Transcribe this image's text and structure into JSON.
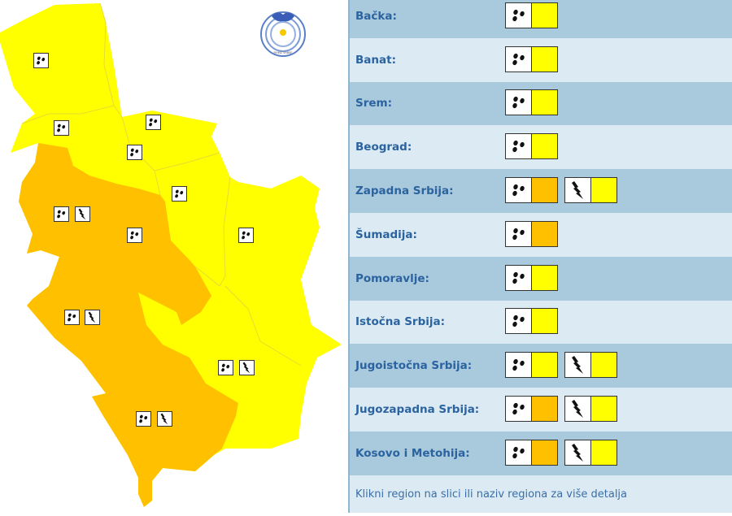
{
  "colors": {
    "yellow": "#ffff00",
    "orange": "#ffc000",
    "label": "#2b63a0"
  },
  "logo": {
    "text": "RHMZ SRBIJE"
  },
  "regions": [
    {
      "label": "Bačka:",
      "warnings": [
        {
          "icon": "rain-icon",
          "level": "yellow"
        }
      ]
    },
    {
      "label": "Banat:",
      "warnings": [
        {
          "icon": "rain-icon",
          "level": "yellow"
        }
      ]
    },
    {
      "label": "Srem:",
      "warnings": [
        {
          "icon": "rain-icon",
          "level": "yellow"
        }
      ]
    },
    {
      "label": "Beograd:",
      "warnings": [
        {
          "icon": "rain-icon",
          "level": "yellow"
        }
      ]
    },
    {
      "label": "Zapadna Srbija:",
      "warnings": [
        {
          "icon": "rain-icon",
          "level": "orange"
        },
        {
          "icon": "lightning-icon",
          "level": "yellow"
        }
      ]
    },
    {
      "label": "Šumadija:",
      "warnings": [
        {
          "icon": "rain-icon",
          "level": "orange"
        }
      ]
    },
    {
      "label": "Pomoravlje:",
      "warnings": [
        {
          "icon": "rain-icon",
          "level": "yellow"
        }
      ]
    },
    {
      "label": "Istočna Srbija:",
      "warnings": [
        {
          "icon": "rain-icon",
          "level": "yellow"
        }
      ]
    },
    {
      "label": "Jugoistočna Srbija:",
      "warnings": [
        {
          "icon": "rain-icon",
          "level": "yellow"
        },
        {
          "icon": "lightning-icon",
          "level": "yellow"
        }
      ]
    },
    {
      "label": "Jugozapadna Srbija:",
      "warnings": [
        {
          "icon": "rain-icon",
          "level": "orange"
        },
        {
          "icon": "lightning-icon",
          "level": "yellow"
        }
      ]
    },
    {
      "label": "Kosovo i Metohija:",
      "warnings": [
        {
          "icon": "rain-icon",
          "level": "orange"
        },
        {
          "icon": "lightning-icon",
          "level": "yellow"
        }
      ]
    }
  ],
  "footer": {
    "hint": "Klikni region na slici ili naziv regiona za više detalja"
  }
}
